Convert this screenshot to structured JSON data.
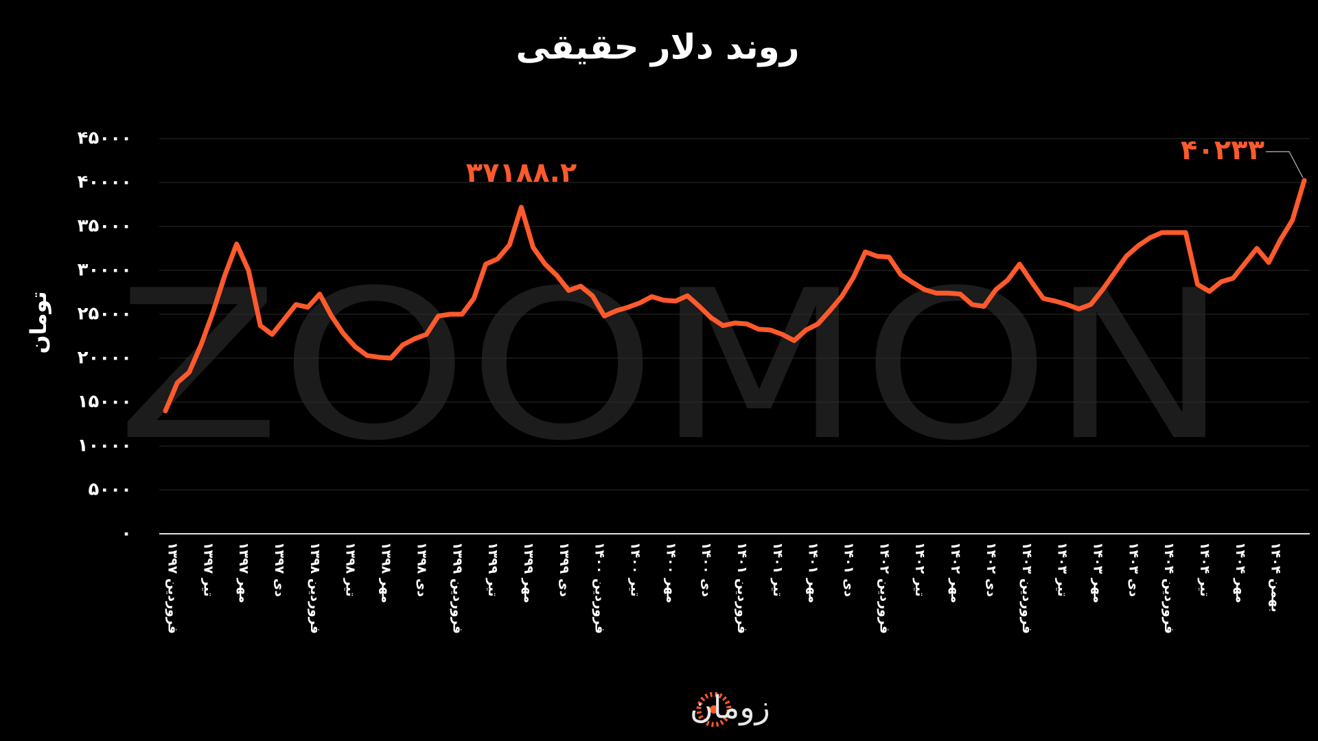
{
  "chart_data": {
    "type": "line",
    "title": "روند دلار حقیقی",
    "y_label": "تومان",
    "watermark": "ZOOMON",
    "brand": "زومان",
    "categories": [
      "فروردین ۱۳۹۷",
      null,
      null,
      "تیر ۱۳۹۷",
      null,
      null,
      "مهر ۱۳۹۷",
      null,
      null,
      "دی ۱۳۹۷",
      null,
      null,
      "فروردین ۱۳۹۸",
      null,
      null,
      "تیر ۱۳۹۸",
      null,
      null,
      "مهر ۱۳۹۸",
      null,
      null,
      "دی ۱۳۹۸",
      null,
      null,
      "فروردین ۱۳۹۹",
      null,
      null,
      "تیر ۱۳۹۹",
      null,
      null,
      "مهر ۱۳۹۹",
      null,
      null,
      "دی ۱۳۹۹",
      null,
      null,
      "فروردین ۱۴۰۰",
      null,
      null,
      "تیر ۱۴۰۰",
      null,
      null,
      "مهر ۱۴۰۰",
      null,
      null,
      "دی ۱۴۰۰",
      null,
      null,
      "فروردین ۱۴۰۱",
      null,
      null,
      "تیر ۱۴۰۱",
      null,
      null,
      "مهر ۱۴۰۱",
      null,
      null,
      "دی ۱۴۰۱",
      null,
      null,
      "فروردین ۱۴۰۲",
      null,
      null,
      "تیر ۱۴۰۲",
      null,
      null,
      "مهر ۱۴۰۲",
      null,
      null,
      "دی ۱۴۰۲",
      null,
      null,
      "فروردین ۱۴۰۳",
      null,
      null,
      "تیر ۱۴۰۳",
      null,
      null,
      "مهر ۱۴۰۳",
      null,
      null,
      "دی ۱۴۰۳",
      null,
      null,
      "فروردین ۱۴۰۴",
      null,
      null,
      "تیر ۱۴۰۴",
      null,
      null,
      "مهر ۱۴۰۴",
      null,
      null,
      "بهمن ۱۴۰۴",
      null,
      null,
      null
    ],
    "series": [
      {
        "name": "دلار حقیقی",
        "color": "#ff5a2c",
        "values": [
          14000,
          17200,
          18400,
          21500,
          25200,
          29400,
          33000,
          30000,
          23700,
          22700,
          24400,
          26100,
          25800,
          27300,
          24800,
          22800,
          21300,
          20300,
          20100,
          20000,
          21500,
          22200,
          22700,
          24800,
          25000,
          25000,
          26800,
          30700,
          31300,
          32900,
          37188.2,
          32600,
          30700,
          29400,
          27700,
          28200,
          27100,
          24800,
          25400,
          25800,
          26300,
          27000,
          26600,
          26500,
          27100,
          25900,
          24600,
          23700,
          24000,
          23900,
          23300,
          23200,
          22700,
          22000,
          23200,
          23900,
          25400,
          27000,
          29200,
          32100,
          31600,
          31500,
          29500,
          28600,
          27800,
          27400,
          27400,
          27300,
          26100,
          25900,
          27800,
          28900,
          30700,
          28700,
          26800,
          26500,
          26100,
          25600,
          26100,
          27800,
          29700,
          31600,
          32800,
          33700,
          34300,
          34300,
          34300,
          28400,
          27600,
          28700,
          29100,
          30800,
          32500,
          30900,
          33500,
          35700,
          40233
        ],
        "value_labels": [
          null,
          null,
          null,
          null,
          null,
          null,
          null,
          null,
          null,
          null,
          null,
          null,
          null,
          null,
          null,
          null,
          null,
          null,
          null,
          null,
          null,
          null,
          null,
          null,
          null,
          null,
          null,
          null,
          null,
          null,
          "۳۷۱۸۸.۲",
          null,
          null,
          null,
          null,
          null,
          null,
          null,
          null,
          null,
          null,
          null,
          null,
          null,
          null,
          null,
          null,
          null,
          null,
          null,
          null,
          null,
          null,
          null,
          null,
          null,
          null,
          null,
          null,
          null,
          null,
          null,
          null,
          null,
          null,
          null,
          null,
          null,
          null,
          null,
          null,
          null,
          null,
          null,
          null,
          null,
          null,
          null,
          null,
          null,
          null,
          null,
          null,
          null,
          null,
          null,
          null,
          null,
          null,
          null,
          null,
          null,
          null,
          null,
          null,
          null,
          "۴۰۲۳۳"
        ]
      }
    ],
    "ylim": [
      0,
      45000
    ],
    "yticks": [
      {
        "value": 0,
        "label": "۰"
      },
      {
        "value": 5000,
        "label": "۵۰۰۰"
      },
      {
        "value": 10000,
        "label": "۱۰۰۰۰"
      },
      {
        "value": 15000,
        "label": "۱۵۰۰۰"
      },
      {
        "value": 20000,
        "label": "۲۰۰۰۰"
      },
      {
        "value": 25000,
        "label": "۲۵۰۰۰"
      },
      {
        "value": 30000,
        "label": "۳۰۰۰۰"
      },
      {
        "value": 35000,
        "label": "۳۵۰۰۰"
      },
      {
        "value": 40000,
        "label": "۴۰۰۰۰"
      },
      {
        "value": 45000,
        "label": "۴۵۰۰۰"
      }
    ],
    "grid": true
  }
}
